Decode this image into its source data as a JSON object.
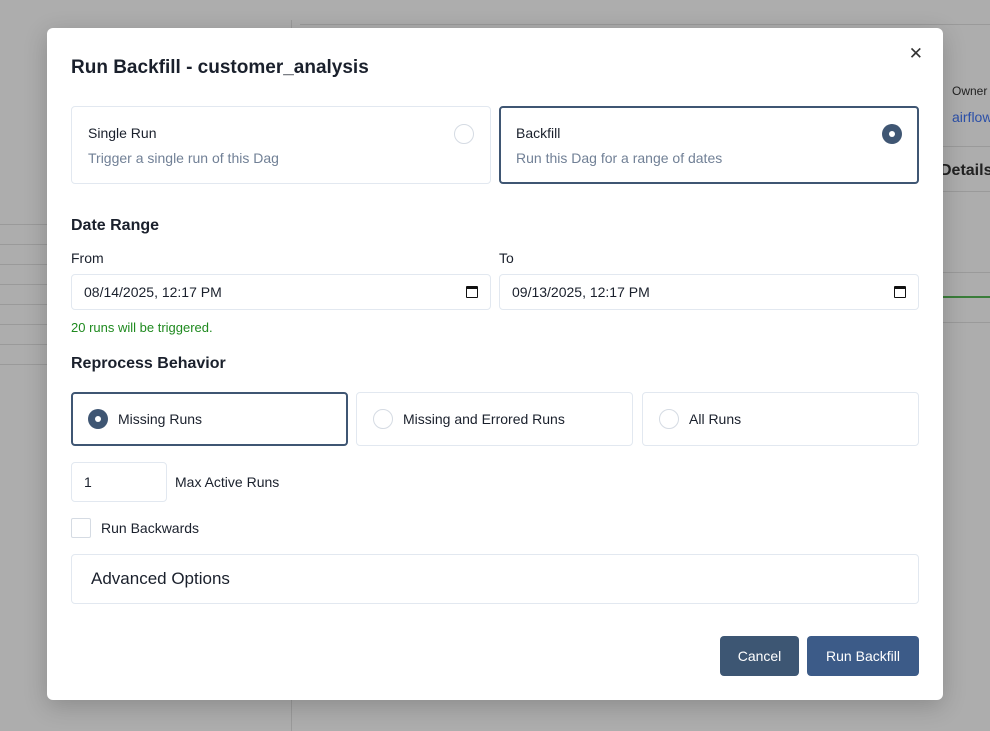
{
  "background": {
    "owner_label": "Owner",
    "owner_value": "airflow",
    "details_label": "Details"
  },
  "modal": {
    "title": "Run Backfill - customer_analysis",
    "close_icon": "close-icon",
    "run_types": [
      {
        "label": "Single Run",
        "description": "Trigger a single run of this Dag",
        "selected": false
      },
      {
        "label": "Backfill",
        "description": "Run this Dag for a range of dates",
        "selected": true
      }
    ],
    "date_range": {
      "heading": "Date Range",
      "from_label": "From",
      "from_value": "08/14/2025, 12:17 PM",
      "to_label": "To",
      "to_value": "09/13/2025, 12:17 PM",
      "info": "20 runs will be triggered."
    },
    "reprocess": {
      "heading": "Reprocess Behavior",
      "options": [
        {
          "label": "Missing Runs",
          "selected": true
        },
        {
          "label": "Missing and Errored Runs",
          "selected": false
        },
        {
          "label": "All Runs",
          "selected": false
        }
      ]
    },
    "max_active_runs": {
      "value": "1",
      "label": "Max Active Runs"
    },
    "run_backwards": {
      "label": "Run Backwards",
      "checked": false
    },
    "advanced_options": "Advanced Options",
    "buttons": {
      "cancel": "Cancel",
      "submit": "Run Backfill"
    }
  },
  "colors": {
    "primary": "#3f5673",
    "cancel": "#3d5673",
    "submit": "#3c5b88",
    "success": "#1f8a1f"
  }
}
